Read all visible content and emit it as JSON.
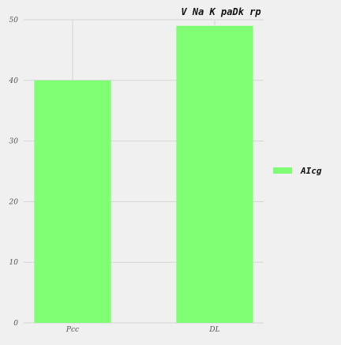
{
  "chart_data": {
    "type": "bar",
    "title": "V Na K paDk rp",
    "xlabel": "",
    "ylabel": "",
    "categories": [
      "Pcc",
      "DL"
    ],
    "series": [
      {
        "name": "AIcg",
        "values": [
          40,
          49
        ],
        "color": "#80ff75"
      }
    ],
    "ylim": [
      0,
      50
    ],
    "yticks": [
      0,
      10,
      20,
      30,
      40,
      50
    ],
    "grid": true,
    "legend": "right",
    "background": "#f0f0f0",
    "grid_color": "#d5d5d5"
  }
}
